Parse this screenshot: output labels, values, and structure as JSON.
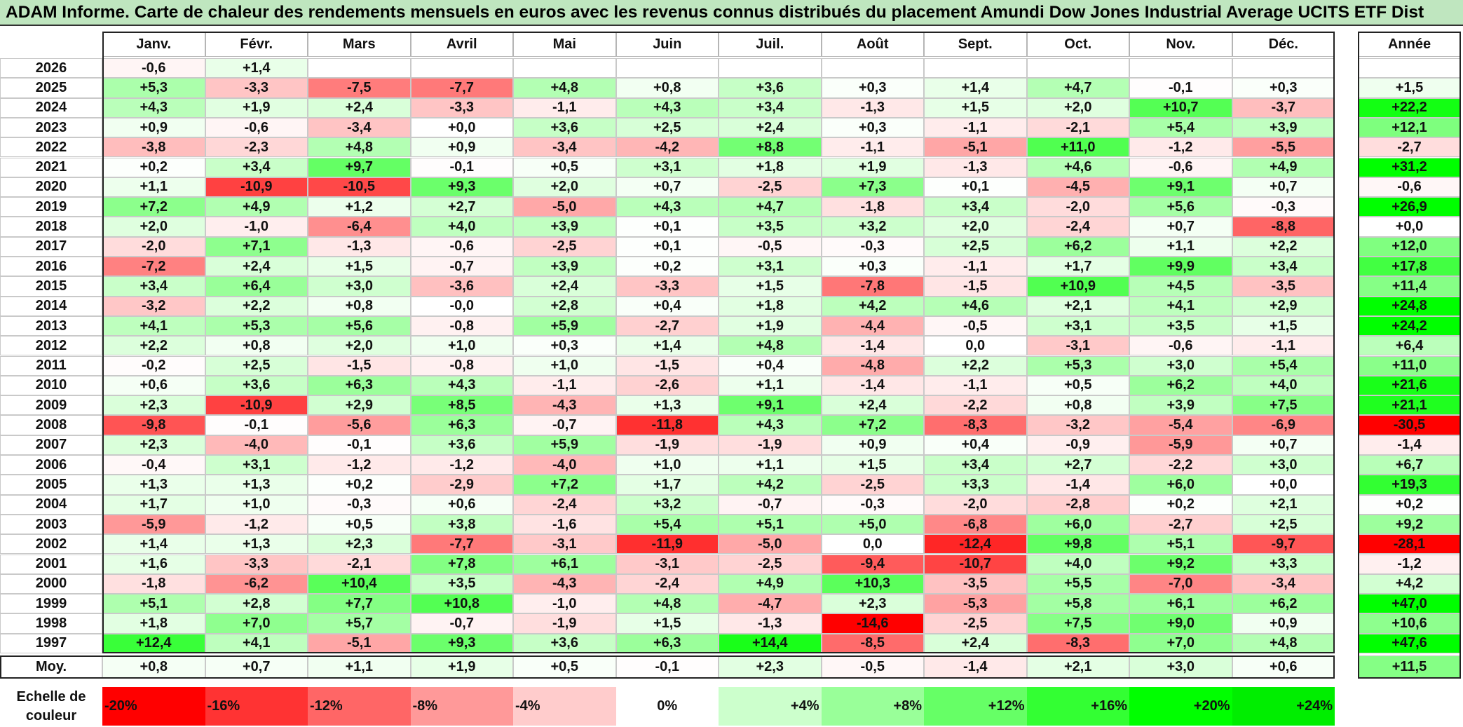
{
  "title": "ADAM Informe. Carte de chaleur des rendements mensuels en euros avec les revenus connus distribués du placement Amundi Dow Jones Industrial Average UCITS ETF Dist",
  "chart_data": {
    "type": "heatmap",
    "title": "ADAM Informe. Carte de chaleur des rendements mensuels en euros avec les revenus connus distribués du placement Amundi Dow Jones Industrial Average UCITS ETF Dist",
    "columns": [
      "Janv.",
      "Févr.",
      "Mars",
      "Avril",
      "Mai",
      "Juin",
      "Juil.",
      "Août",
      "Sept.",
      "Oct.",
      "Nov.",
      "Déc."
    ],
    "year_header": "Année",
    "average_label": "Moy.",
    "rows": [
      {
        "year": "2026",
        "months": [
          "-0,6",
          "+1,4",
          "",
          "",
          "",
          "",
          "",
          "",
          "",
          "",
          "",
          ""
        ],
        "annual": ""
      },
      {
        "year": "2025",
        "months": [
          "+5,3",
          "-3,3",
          "-7,5",
          "-7,7",
          "+4,8",
          "+0,8",
          "+3,6",
          "+0,3",
          "+1,4",
          "+4,7",
          "-0,1",
          "+0,3"
        ],
        "annual": "+1,5"
      },
      {
        "year": "2024",
        "months": [
          "+4,3",
          "+1,9",
          "+2,4",
          "-3,3",
          "-1,1",
          "+4,3",
          "+3,4",
          "-1,3",
          "+1,5",
          "+2,0",
          "+10,7",
          "-3,7"
        ],
        "annual": "+22,2"
      },
      {
        "year": "2023",
        "months": [
          "+0,9",
          "-0,6",
          "-3,4",
          "+0,0",
          "+3,6",
          "+2,5",
          "+2,4",
          "+0,3",
          "-1,1",
          "-2,1",
          "+5,4",
          "+3,9"
        ],
        "annual": "+12,1"
      },
      {
        "year": "2022",
        "months": [
          "-3,8",
          "-2,3",
          "+4,8",
          "+0,9",
          "-3,4",
          "-4,2",
          "+8,8",
          "-1,1",
          "-5,1",
          "+11,0",
          "-1,2",
          "-5,5"
        ],
        "annual": "-2,7"
      },
      {
        "year": "2021",
        "months": [
          "+0,2",
          "+3,4",
          "+9,7",
          "-0,1",
          "+0,5",
          "+3,1",
          "+1,8",
          "+1,9",
          "-1,3",
          "+4,6",
          "-0,6",
          "+4,9"
        ],
        "annual": "+31,2"
      },
      {
        "year": "2020",
        "months": [
          "+1,1",
          "-10,9",
          "-10,5",
          "+9,3",
          "+2,0",
          "+0,7",
          "-2,5",
          "+7,3",
          "+0,1",
          "-4,5",
          "+9,1",
          "+0,7"
        ],
        "annual": "-0,6"
      },
      {
        "year": "2019",
        "months": [
          "+7,2",
          "+4,9",
          "+1,2",
          "+2,7",
          "-5,0",
          "+4,3",
          "+4,7",
          "-1,8",
          "+3,4",
          "-2,0",
          "+5,6",
          "-0,3"
        ],
        "annual": "+26,9"
      },
      {
        "year": "2018",
        "months": [
          "+2,0",
          "-1,0",
          "-6,4",
          "+4,0",
          "+3,9",
          "+0,1",
          "+3,5",
          "+3,2",
          "+2,0",
          "-2,4",
          "+0,7",
          "-8,8"
        ],
        "annual": "+0,0"
      },
      {
        "year": "2017",
        "months": [
          "-2,0",
          "+7,1",
          "-1,3",
          "-0,6",
          "-2,5",
          "+0,1",
          "-0,5",
          "-0,3",
          "+2,5",
          "+6,2",
          "+1,1",
          "+2,2"
        ],
        "annual": "+12,0"
      },
      {
        "year": "2016",
        "months": [
          "-7,2",
          "+2,4",
          "+1,5",
          "-0,7",
          "+3,9",
          "+0,2",
          "+3,1",
          "+0,3",
          "-1,1",
          "+1,7",
          "+9,9",
          "+3,4"
        ],
        "annual": "+17,8"
      },
      {
        "year": "2015",
        "months": [
          "+3,4",
          "+6,4",
          "+3,0",
          "-3,6",
          "+2,4",
          "-3,3",
          "+1,5",
          "-7,8",
          "-1,5",
          "+10,9",
          "+4,5",
          "-3,5"
        ],
        "annual": "+11,4"
      },
      {
        "year": "2014",
        "months": [
          "-3,2",
          "+2,2",
          "+0,8",
          "-0,0",
          "+2,8",
          "+0,4",
          "+1,8",
          "+4,2",
          "+4,6",
          "+2,1",
          "+4,1",
          "+2,9"
        ],
        "annual": "+24,8"
      },
      {
        "year": "2013",
        "months": [
          "+4,1",
          "+5,3",
          "+5,6",
          "-0,8",
          "+5,9",
          "-2,7",
          "+1,9",
          "-4,4",
          "-0,5",
          "+3,1",
          "+3,5",
          "+1,5"
        ],
        "annual": "+24,2"
      },
      {
        "year": "2012",
        "months": [
          "+2,2",
          "+0,8",
          "+2,0",
          "+1,0",
          "+0,3",
          "+1,4",
          "+4,8",
          "-1,4",
          "0,0",
          "-3,1",
          "-0,6",
          "-1,1"
        ],
        "annual": "+6,4"
      },
      {
        "year": "2011",
        "months": [
          "-0,2",
          "+2,5",
          "-1,5",
          "-0,8",
          "+1,0",
          "-1,5",
          "+0,4",
          "-4,8",
          "+2,2",
          "+5,3",
          "+3,0",
          "+5,4"
        ],
        "annual": "+11,0"
      },
      {
        "year": "2010",
        "months": [
          "+0,6",
          "+3,6",
          "+6,3",
          "+4,3",
          "-1,1",
          "-2,6",
          "+1,1",
          "-1,4",
          "-1,1",
          "+0,5",
          "+6,2",
          "+4,0"
        ],
        "annual": "+21,6"
      },
      {
        "year": "2009",
        "months": [
          "+2,3",
          "-10,9",
          "+2,9",
          "+8,5",
          "-4,3",
          "+1,3",
          "+9,1",
          "+2,4",
          "-2,2",
          "+0,8",
          "+3,9",
          "+7,5"
        ],
        "annual": "+21,1"
      },
      {
        "year": "2008",
        "months": [
          "-9,8",
          "-0,1",
          "-5,6",
          "+6,3",
          "-0,7",
          "-11,8",
          "+4,3",
          "+7,2",
          "-8,3",
          "-3,2",
          "-5,4",
          "-6,9"
        ],
        "annual": "-30,5"
      },
      {
        "year": "2007",
        "months": [
          "+2,3",
          "-4,0",
          "-0,1",
          "+3,6",
          "+5,9",
          "-1,9",
          "-1,9",
          "+0,9",
          "+0,4",
          "-0,9",
          "-5,9",
          "+0,7"
        ],
        "annual": "-1,4"
      },
      {
        "year": "2006",
        "months": [
          "-0,4",
          "+3,1",
          "-1,2",
          "-1,2",
          "-4,0",
          "+1,0",
          "+1,1",
          "+1,5",
          "+3,4",
          "+2,7",
          "-2,2",
          "+3,0"
        ],
        "annual": "+6,7"
      },
      {
        "year": "2005",
        "months": [
          "+1,3",
          "+1,3",
          "+0,2",
          "-2,9",
          "+7,2",
          "+1,7",
          "+4,2",
          "-2,5",
          "+3,3",
          "-1,4",
          "+6,0",
          "+0,0"
        ],
        "annual": "+19,3"
      },
      {
        "year": "2004",
        "months": [
          "+1,7",
          "+1,0",
          "-0,3",
          "+0,6",
          "-2,4",
          "+3,2",
          "-0,7",
          "-0,3",
          "-2,0",
          "-2,8",
          "+0,2",
          "+2,1"
        ],
        "annual": "+0,2"
      },
      {
        "year": "2003",
        "months": [
          "-5,9",
          "-1,2",
          "+0,5",
          "+3,8",
          "-1,6",
          "+5,4",
          "+5,1",
          "+5,0",
          "-6,8",
          "+6,0",
          "-2,7",
          "+2,5"
        ],
        "annual": "+9,2"
      },
      {
        "year": "2002",
        "months": [
          "+1,4",
          "+1,3",
          "+2,3",
          "-7,7",
          "-3,1",
          "-11,9",
          "-5,0",
          "0,0",
          "-12,4",
          "+9,8",
          "+5,1",
          "-9,7"
        ],
        "annual": "-28,1"
      },
      {
        "year": "2001",
        "months": [
          "+1,6",
          "-3,3",
          "-2,1",
          "+7,8",
          "+6,1",
          "-3,1",
          "-2,5",
          "-9,4",
          "-10,7",
          "+4,0",
          "+9,2",
          "+3,3"
        ],
        "annual": "-1,2"
      },
      {
        "year": "2000",
        "months": [
          "-1,8",
          "-6,2",
          "+10,4",
          "+3,5",
          "-4,3",
          "-2,4",
          "+4,9",
          "+10,3",
          "-3,5",
          "+5,5",
          "-7,0",
          "-3,4"
        ],
        "annual": "+4,2"
      },
      {
        "year": "1999",
        "months": [
          "+5,1",
          "+2,8",
          "+7,7",
          "+10,8",
          "-1,0",
          "+4,8",
          "-4,7",
          "+2,3",
          "-5,3",
          "+5,8",
          "+6,1",
          "+6,2"
        ],
        "annual": "+47,0"
      },
      {
        "year": "1998",
        "months": [
          "+1,8",
          "+7,0",
          "+5,7",
          "-0,7",
          "-1,9",
          "+1,5",
          "-1,3",
          "-14,6",
          "-2,5",
          "+7,5",
          "+9,0",
          "+0,9"
        ],
        "annual": "+10,6"
      },
      {
        "year": "1997",
        "months": [
          "+12,4",
          "+4,1",
          "-5,1",
          "+9,3",
          "+3,6",
          "+6,3",
          "+14,4",
          "-8,5",
          "+2,4",
          "-8,3",
          "+7,0",
          "+4,8"
        ],
        "annual": "+47,6"
      }
    ],
    "average": {
      "months": [
        "+0,8",
        "+0,7",
        "+1,1",
        "+1,9",
        "+0,5",
        "-0,1",
        "+2,3",
        "-0,5",
        "-1,4",
        "+2,1",
        "+3,0",
        "+0,6"
      ],
      "annual": "+11,5"
    },
    "color_scale": {
      "label": "Echelle de couleur",
      "steps": [
        {
          "label": "-20%",
          "value": -20,
          "color": "#ff0000"
        },
        {
          "label": "-16%",
          "value": -16,
          "color": "#ff3333"
        },
        {
          "label": "-12%",
          "value": -12,
          "color": "#ff6666"
        },
        {
          "label": "-8%",
          "value": -8,
          "color": "#ff9999"
        },
        {
          "label": "-4%",
          "value": -4,
          "color": "#ffcccc"
        },
        {
          "label": "0%",
          "value": 0,
          "color": "#ffffff"
        },
        {
          "label": "+4%",
          "value": 4,
          "color": "#ccffcc"
        },
        {
          "label": "+8%",
          "value": 8,
          "color": "#99ff99"
        },
        {
          "label": "+12%",
          "value": 12,
          "color": "#66ff66"
        },
        {
          "label": "+16%",
          "value": 16,
          "color": "#33ff33"
        },
        {
          "label": "+20%",
          "value": 20,
          "color": "#00ff00"
        },
        {
          "label": "+24%",
          "value": 24,
          "color": "#00ee00"
        }
      ]
    }
  }
}
